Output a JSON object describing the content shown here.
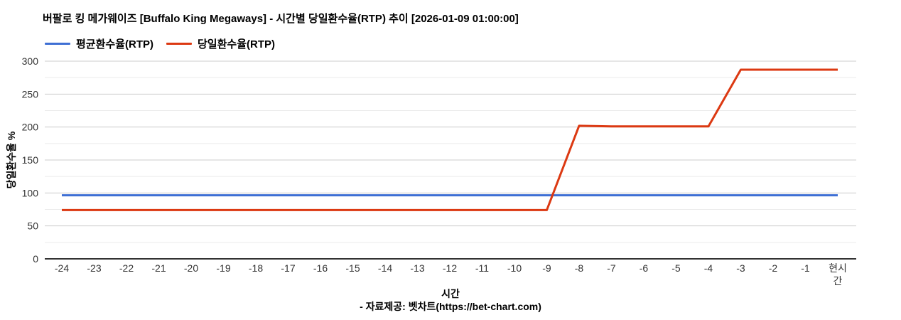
{
  "chart_data": {
    "type": "line",
    "title": "버팔로 킹 메가웨이즈 [Buffalo King Megaways] - 시간별 당일환수율(RTP) 추이 [2026-01-09 01:00:00]",
    "xlabel": "시간",
    "ylabel": "당일환수율 %",
    "categories": [
      "-24",
      "-23",
      "-22",
      "-21",
      "-20",
      "-19",
      "-18",
      "-17",
      "-16",
      "-15",
      "-14",
      "-13",
      "-12",
      "-11",
      "-10",
      "-9",
      "-8",
      "-7",
      "-6",
      "-5",
      "-4",
      "-3",
      "-2",
      "-1",
      "현시간"
    ],
    "series": [
      {
        "name": "평균환수율(RTP)",
        "color": "#3E6FD4",
        "values": [
          96.5,
          96.5,
          96.5,
          96.5,
          96.5,
          96.5,
          96.5,
          96.5,
          96.5,
          96.5,
          96.5,
          96.5,
          96.5,
          96.5,
          96.5,
          96.5,
          96.5,
          96.5,
          96.5,
          96.5,
          96.5,
          96.5,
          96.5,
          96.5,
          96.5
        ]
      },
      {
        "name": "당일환수율(RTP)",
        "color": "#DC3912",
        "values": [
          74,
          74,
          74,
          74,
          74,
          74,
          74,
          74,
          74,
          74,
          74,
          74,
          74,
          74,
          74,
          74,
          202,
          201,
          201,
          201,
          201,
          287,
          287,
          287,
          287
        ]
      }
    ],
    "ylim": [
      0,
      300
    ],
    "y_major_ticks": [
      0,
      50,
      100,
      150,
      200,
      250,
      300
    ],
    "y_minor_step": 25,
    "grid": true,
    "legend_position": "top-left",
    "colors": {
      "major_gridline": "#cccccc",
      "minor_gridline": "#ebebeb",
      "axis_line": "#333333",
      "tick_label": "#333333"
    }
  },
  "footer": {
    "text": "- 자료제공: 벳차트(https://bet-chart.com)"
  }
}
